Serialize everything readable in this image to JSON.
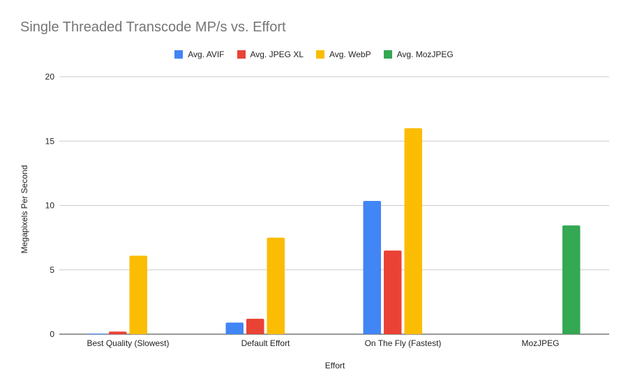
{
  "chart_data": {
    "type": "bar",
    "title": "Single Threaded Transcode MP/s vs. Effort",
    "xlabel": "Effort",
    "ylabel": "Megapixels Per Second",
    "categories": [
      "Best Quality (Slowest)",
      "Default Effort",
      "On The Fly (Fastest)",
      "MozJPEG"
    ],
    "ylim": [
      0,
      20
    ],
    "yticks": [
      0,
      5,
      10,
      15,
      20
    ],
    "grid": true,
    "legend_position": "top",
    "series": [
      {
        "name": "Avg. AVIF",
        "color": "#4285f4",
        "values": [
          0.05,
          0.9,
          10.35,
          null
        ]
      },
      {
        "name": "Avg. JPEG XL",
        "color": "#ea4335",
        "values": [
          0.2,
          1.2,
          6.5,
          null
        ]
      },
      {
        "name": "Avg. WebP",
        "color": "#fbbc04",
        "values": [
          6.1,
          7.5,
          16.0,
          null
        ]
      },
      {
        "name": "Avg. MozJPEG",
        "color": "#34a853",
        "values": [
          null,
          null,
          null,
          8.45
        ]
      }
    ]
  }
}
